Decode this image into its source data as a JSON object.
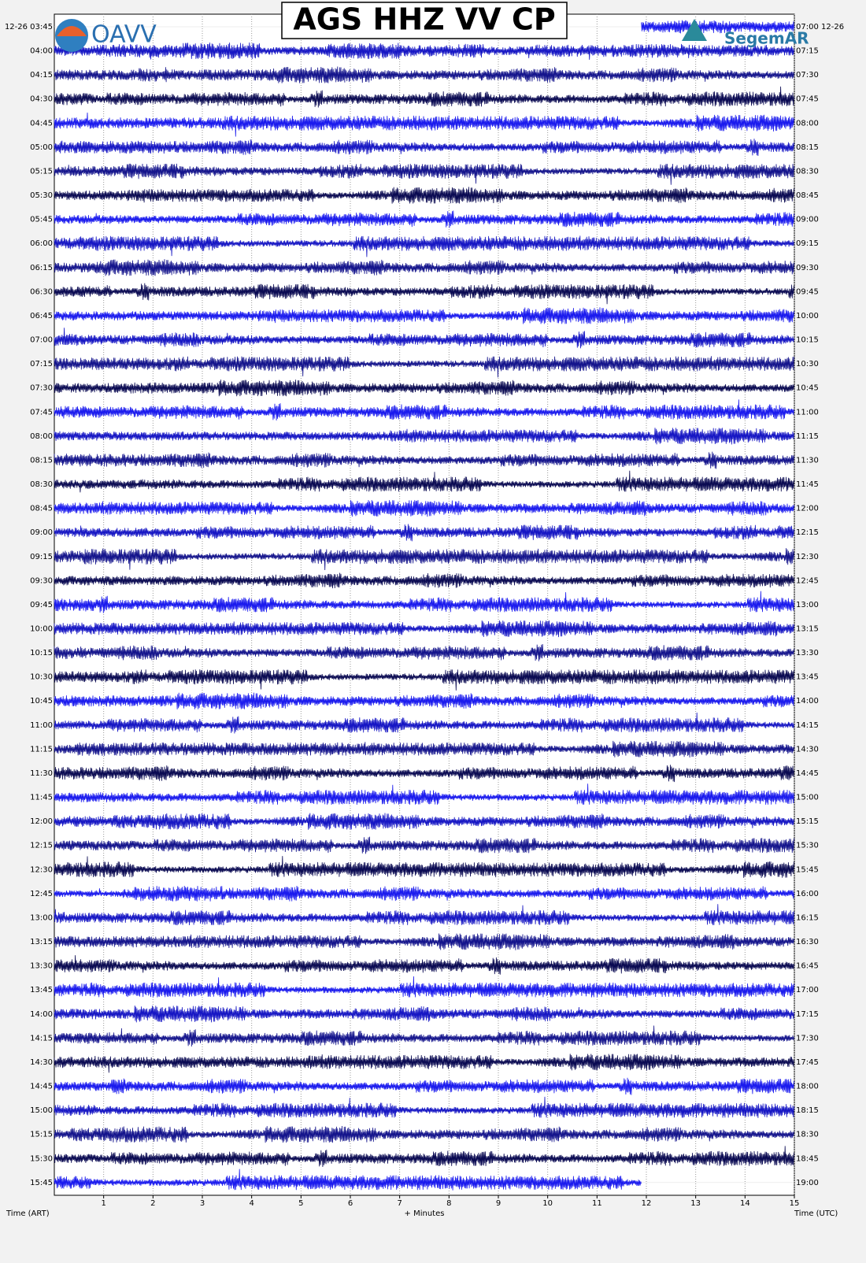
{
  "chart_data": {
    "type": "helicorder",
    "title": "AGS HHZ VV CP",
    "logos": [
      "OAVV",
      "SegemAR"
    ],
    "left_labels": [
      "12-26 03:45",
      "04:00",
      "04:15",
      "04:30",
      "04:45",
      "05:00",
      "05:15",
      "05:30",
      "05:45",
      "06:00",
      "06:15",
      "06:30",
      "06:45",
      "07:00",
      "07:15",
      "07:30",
      "07:45",
      "08:00",
      "08:15",
      "08:30",
      "08:45",
      "09:00",
      "09:15",
      "09:30",
      "09:45",
      "10:00",
      "10:15",
      "10:30",
      "10:45",
      "11:00",
      "11:15",
      "11:30",
      "11:45",
      "12:00",
      "12:15",
      "12:30",
      "12:45",
      "13:00",
      "13:15",
      "13:30",
      "13:45",
      "14:00",
      "14:15",
      "14:30",
      "14:45",
      "15:00",
      "15:15",
      "15:30",
      "15:45"
    ],
    "right_labels": [
      "07:00 12-26",
      "07:15",
      "07:30",
      "07:45",
      "08:00",
      "08:15",
      "08:30",
      "08:45",
      "09:00",
      "09:15",
      "09:30",
      "09:45",
      "10:00",
      "10:15",
      "10:30",
      "10:45",
      "11:00",
      "11:15",
      "11:30",
      "11:45",
      "12:00",
      "12:15",
      "12:30",
      "12:45",
      "13:00",
      "13:15",
      "13:30",
      "13:45",
      "14:00",
      "14:15",
      "14:30",
      "14:45",
      "15:00",
      "15:15",
      "15:30",
      "15:45",
      "16:00",
      "16:15",
      "16:30",
      "16:45",
      "17:00",
      "17:15",
      "17:30",
      "17:45",
      "18:00",
      "18:15",
      "18:30",
      "18:45",
      "19:00"
    ],
    "xlim": [
      0,
      15
    ],
    "xticks": [
      1,
      2,
      3,
      4,
      5,
      6,
      7,
      8,
      9,
      10,
      11,
      12,
      13,
      14,
      15
    ],
    "xlabel": "+ Minutes",
    "left_axis_label": "Time (ART)",
    "right_axis_label": "Time (UTC)",
    "first_trace_start": 11.9,
    "last_trace_end": 11.9,
    "trace_colors": [
      "#1a1aee",
      "#1616c4",
      "#14148c",
      "#0a0a52"
    ],
    "grid": true
  }
}
